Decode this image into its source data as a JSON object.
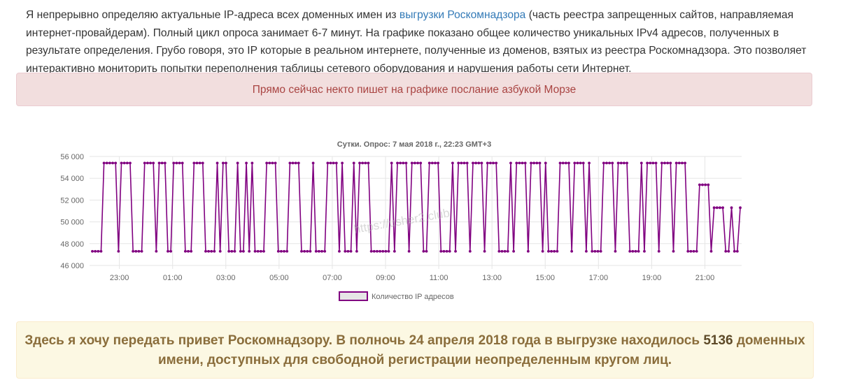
{
  "intro": {
    "text_before_link": "Я непрерывно определяю актуальные IP-адреса всех доменных имен из ",
    "link_text": "выгрузки Роскомнадзора",
    "text_after_link": " (часть реестра запрещенных сайтов, направляемая интернет-провайдерам). Полный цикл опроса занимает 6-7 минут. На графике показано общее количество уникальных IPv4 адресов, полученных в результате определения. Грубо говоря, это IP которые в реальном интернете, полученные из доменов, взятых из реестра Роскомнадзора. Это позволяет интерактивно мониторить попытки переполнения таблицы сетевого оборудования и нарушения работы сети Интернет."
  },
  "alert_danger": "Прямо сейчас некто пишет на графике послание азбукой Морзе",
  "watermark": "https://usher2.club",
  "chart_data": {
    "type": "line",
    "title": "Сутки. Опрос: 7 мая 2018 г., 22:23 GMT+3",
    "ylim": [
      46000,
      56000
    ],
    "yticks": [
      "46 000",
      "48 000",
      "50 000",
      "52 000",
      "54 000",
      "56 000"
    ],
    "xticks": [
      "23:00",
      "01:00",
      "03:00",
      "05:00",
      "07:00",
      "09:00",
      "11:00",
      "13:00",
      "15:00",
      "17:00",
      "19:00",
      "21:00"
    ],
    "x_range_hours": [
      21.88,
      46.38
    ],
    "grid": true,
    "legend_position": "bottom",
    "series": [
      {
        "name": "Количество IP адресов",
        "color": "#800080",
        "fill": "#e6e6e6",
        "segments": [
          [
            47300,
            4
          ],
          [
            55400,
            5
          ],
          [
            47300,
            1
          ],
          [
            55400,
            4
          ],
          [
            47300,
            4
          ],
          [
            55400,
            4
          ],
          [
            47300,
            1
          ],
          [
            55400,
            3
          ],
          [
            47300,
            2
          ],
          [
            55400,
            4
          ],
          [
            47300,
            3
          ],
          [
            55400,
            4
          ],
          [
            47300,
            4
          ],
          [
            55400,
            1
          ],
          [
            47300,
            1
          ],
          [
            55400,
            2
          ],
          [
            47300,
            3
          ],
          [
            55400,
            1
          ],
          [
            47300,
            2
          ],
          [
            55400,
            1
          ],
          [
            47300,
            1
          ],
          [
            55400,
            1
          ],
          [
            47300,
            4
          ],
          [
            55400,
            4
          ],
          [
            47300,
            4
          ],
          [
            55400,
            4
          ],
          [
            47300,
            4
          ],
          [
            55400,
            1
          ],
          [
            47300,
            4
          ],
          [
            55400,
            4
          ],
          [
            47300,
            1
          ],
          [
            55400,
            1
          ],
          [
            47300,
            3
          ],
          [
            55400,
            1
          ],
          [
            47300,
            1
          ],
          [
            55400,
            4
          ],
          [
            47300,
            7
          ],
          [
            55400,
            1
          ],
          [
            47300,
            1
          ],
          [
            55400,
            4
          ],
          [
            47300,
            1
          ],
          [
            55400,
            4
          ],
          [
            47300,
            2
          ],
          [
            55400,
            4
          ],
          [
            47300,
            4
          ],
          [
            55400,
            1
          ],
          [
            47300,
            1
          ],
          [
            55400,
            4
          ],
          [
            47300,
            1
          ],
          [
            55400,
            4
          ],
          [
            47300,
            1
          ],
          [
            55400,
            4
          ],
          [
            47300,
            4
          ],
          [
            55400,
            1
          ],
          [
            47300,
            1
          ],
          [
            55400,
            4
          ],
          [
            47300,
            1
          ],
          [
            55400,
            4
          ],
          [
            47300,
            1
          ],
          [
            55400,
            1
          ],
          [
            47300,
            4
          ],
          [
            55400,
            4
          ],
          [
            47300,
            1
          ],
          [
            55400,
            4
          ],
          [
            47300,
            1
          ],
          [
            55400,
            1
          ],
          [
            47300,
            4
          ],
          [
            55400,
            4
          ],
          [
            47300,
            1
          ],
          [
            55400,
            4
          ],
          [
            47300,
            4
          ],
          [
            55400,
            1
          ],
          [
            47300,
            1
          ],
          [
            55400,
            4
          ],
          [
            47300,
            1
          ],
          [
            55400,
            4
          ],
          [
            47300,
            1
          ],
          [
            55400,
            4
          ],
          [
            47300,
            4
          ],
          [
            53400,
            4
          ],
          [
            47300,
            1
          ],
          [
            51300,
            4
          ],
          [
            47300,
            2
          ],
          [
            51300,
            1
          ],
          [
            47300,
            2
          ],
          [
            51300,
            1
          ]
        ]
      }
    ]
  },
  "alert_warning": {
    "text_before": "Здесь я хочу передать привет Роскомнадзору. В полночь 24 апреля 2018 года в выгрузке находилось ",
    "count": "5136",
    "text_after": " доменных имени, доступных для свободной регистрации неопределенным кругом лиц."
  }
}
